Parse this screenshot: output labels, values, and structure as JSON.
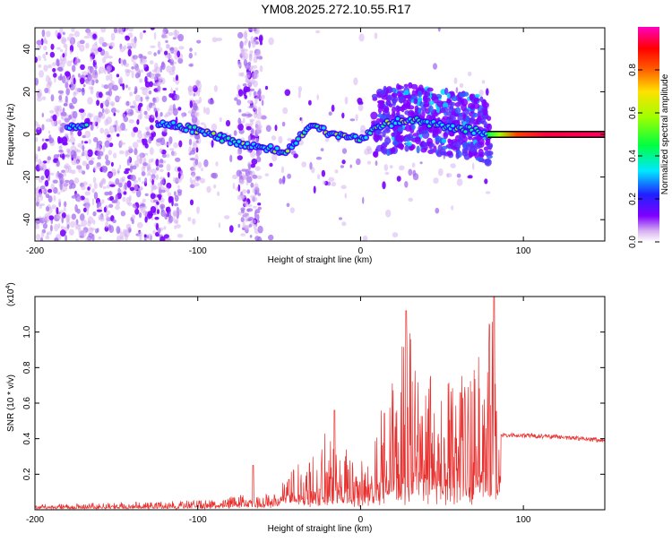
{
  "title": "YM08.2025.272.10.55.R17",
  "chart_data": [
    {
      "type": "heatmap",
      "name": "spectrogram",
      "xlabel": "Height of straight line (km)",
      "ylabel": "Frequency (Hz)",
      "xlim": [
        -200,
        150
      ],
      "ylim": [
        -50,
        50
      ],
      "xticks": [
        -200,
        -100,
        0,
        100
      ],
      "xtick_labels": [
        "-200",
        "-100",
        "0",
        "100"
      ],
      "yticks": [
        -40,
        -20,
        0,
        20,
        40
      ],
      "ytick_labels": [
        "-40",
        "-20",
        "0",
        "20",
        "40"
      ],
      "colorbar": {
        "label": "Normalized spectral amplitude",
        "range": [
          0,
          1
        ],
        "ticks": [
          0.0,
          0.2,
          0.4,
          0.6,
          0.8
        ],
        "tick_labels": [
          "0.0",
          "0.2",
          "0.4",
          "0.6",
          "0.8"
        ],
        "colors": [
          "#ffffff",
          "#d6b3f0",
          "#8000ff",
          "#2020ff",
          "#00e8ff",
          "#00ff40",
          "#a0ff00",
          "#ffe000",
          "#ff6000",
          "#ff0000",
          "#ff00c0"
        ]
      },
      "features": {
        "main_track_x": [
          -180,
          -170,
          -160,
          -120,
          -100,
          -80,
          -60,
          -45,
          -40,
          -30,
          -20,
          -10,
          0,
          10,
          30,
          50,
          70,
          80,
          100,
          150
        ],
        "main_track_freq": [
          3,
          3,
          3,
          5,
          2,
          -3,
          -6,
          -8,
          -3,
          5,
          1,
          -1,
          -3,
          4,
          7,
          4,
          2,
          0,
          0,
          0
        ]
      }
    },
    {
      "type": "line",
      "name": "snr",
      "xlabel": "Height of straight line (km)",
      "ylabel": "SNR (10 * v/v)",
      "y_multiplier": "(x10",
      "y_multiplier_exp": "4",
      "y_multiplier_close": ")",
      "xlim": [
        -200,
        150
      ],
      "ylim": [
        0,
        1.2
      ],
      "xticks": [
        -200,
        -100,
        0,
        100
      ],
      "xtick_labels": [
        "-200",
        "-100",
        "0",
        "100"
      ],
      "yticks": [
        0.2,
        0.4,
        0.6,
        0.8,
        1.0
      ],
      "ytick_labels": [
        "0.2",
        "0.4",
        "0.6",
        "0.8",
        "1.0"
      ],
      "color": "#e8302e",
      "envelope_x": [
        -200,
        -120,
        -90,
        -70,
        -60,
        -50,
        -40,
        -30,
        -20,
        -10,
        0,
        10,
        20,
        30,
        40,
        50,
        60,
        70,
        80,
        86,
        100,
        120,
        150
      ],
      "envelope_base": [
        0.02,
        0.03,
        0.04,
        0.06,
        0.06,
        0.08,
        0.1,
        0.12,
        0.15,
        0.14,
        0.15,
        0.18,
        0.2,
        0.22,
        0.22,
        0.23,
        0.24,
        0.25,
        0.26,
        0.42,
        0.42,
        0.41,
        0.39
      ],
      "envelope_peak": [
        0.03,
        0.05,
        0.06,
        0.09,
        0.08,
        0.14,
        0.25,
        0.35,
        0.5,
        0.35,
        0.3,
        0.45,
        0.85,
        1.0,
        0.85,
        0.78,
        0.75,
        0.9,
        1.2,
        0.44,
        0.43,
        0.42,
        0.4
      ],
      "spikes_x": [
        -66,
        -44,
        -16,
        28,
        82
      ],
      "spikes_y": [
        0.25,
        0.17,
        0.56,
        1.12,
        1.2
      ]
    }
  ]
}
